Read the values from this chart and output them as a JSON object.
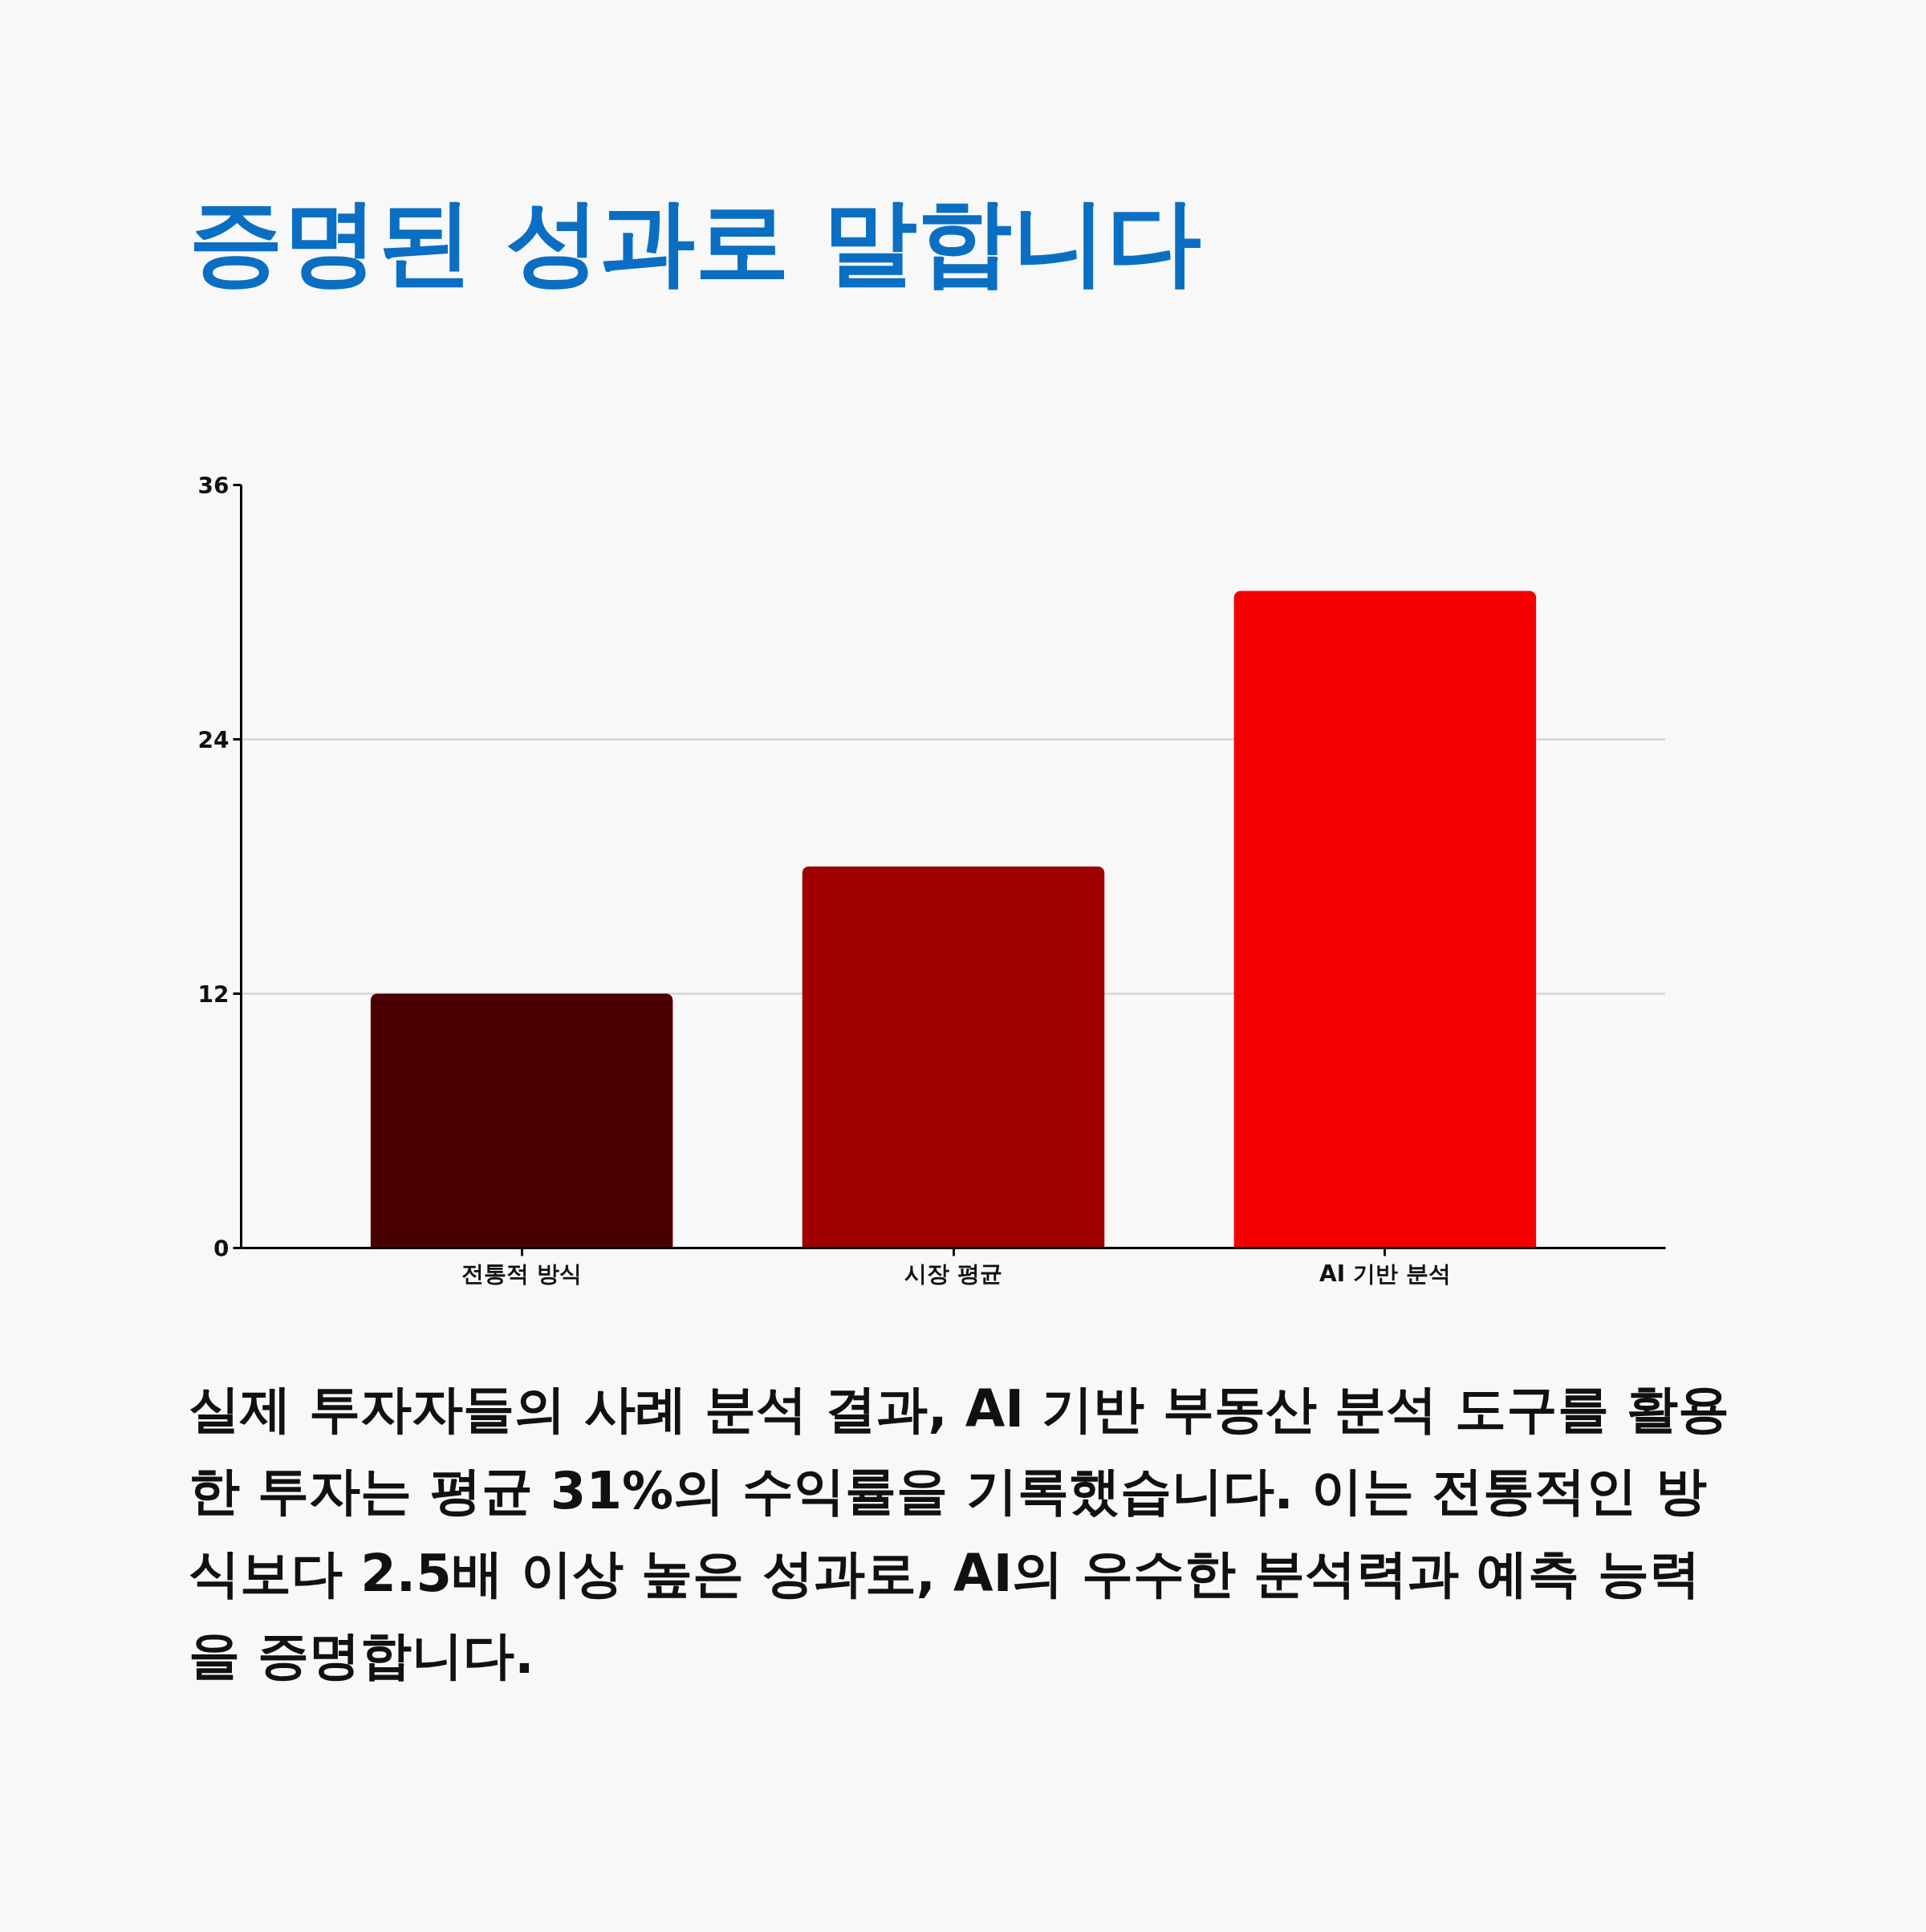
{
  "chart_data": {
    "type": "bar",
    "title": "증명된 성과로 말합니다",
    "categories": [
      "전통적 방식",
      "시장 평균",
      "AI 기반 분석"
    ],
    "values": [
      12,
      18,
      31
    ],
    "colors": [
      "#4a0000",
      "#a00000",
      "#f50000"
    ],
    "ylim": [
      0,
      36
    ],
    "yticks": [
      0,
      12,
      24,
      36
    ],
    "grid": "y",
    "annotations": [
      "실제 투자자들의 사례 분석 결과, AI 기반 부동산 분석 도구를 활용한 투자는 평균 31%의 수익률을 기록했습니다. 이는 전통적인 방식보다 2.5배 이상 높은 성과로, AI의 우수한 분석력과 예측 능력을 증명합니다."
    ]
  }
}
